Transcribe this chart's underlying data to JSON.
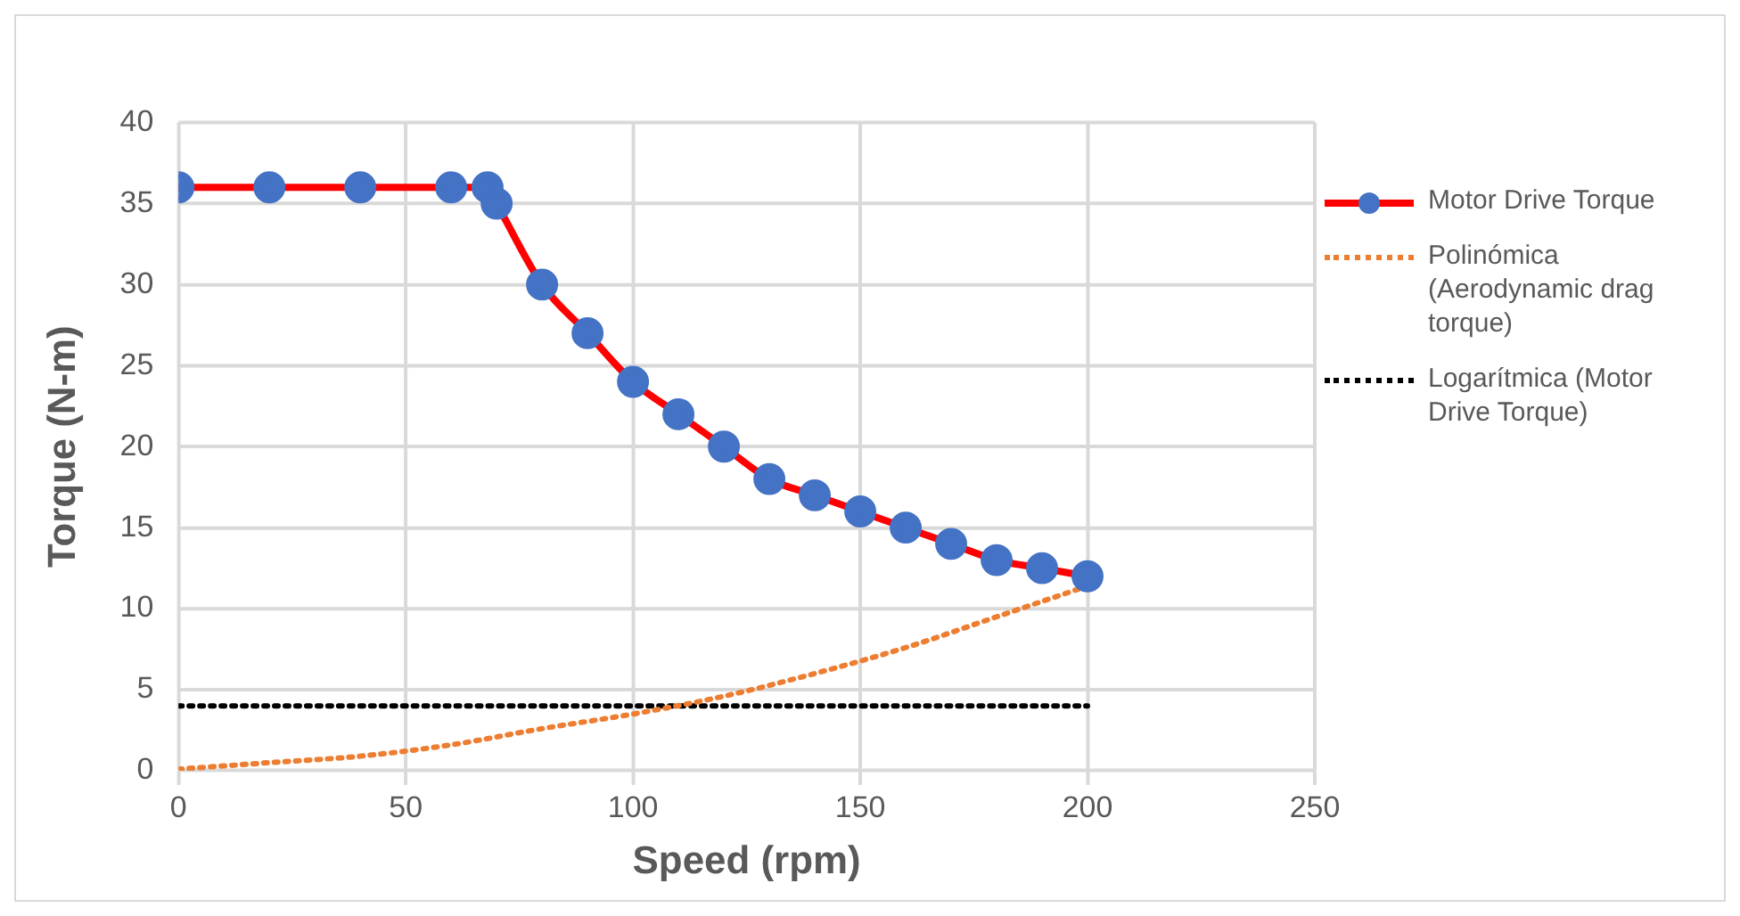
{
  "chart_data": {
    "type": "line",
    "xlabel": "Speed (rpm)",
    "ylabel": "Torque (N-m)",
    "xlim": [
      0,
      250
    ],
    "xticks": [
      0,
      50,
      100,
      150,
      200,
      250
    ],
    "ylim": [
      0,
      40
    ],
    "yticks": [
      0,
      5,
      10,
      15,
      20,
      25,
      30,
      35,
      40
    ],
    "grid": true,
    "legend": "right",
    "series": [
      {
        "name": "Motor Drive Torque",
        "color": "#ff0000",
        "marker": "circle",
        "line_style": "solid",
        "x": [
          0,
          20,
          40,
          60,
          68,
          70,
          80,
          90,
          100,
          110,
          120,
          130,
          140,
          150,
          160,
          170,
          180,
          190,
          200
        ],
        "values": [
          36,
          36,
          36,
          36,
          36,
          35,
          30,
          27,
          24,
          22,
          20,
          18,
          17,
          16,
          15,
          14,
          13,
          12.5,
          12
        ],
        "colors": [
          "#4472c4",
          "#4472c4",
          "#4472c4",
          "#4472c4",
          "#4472c4",
          "#4472c4",
          "#4472c4",
          "#4472c4",
          "#4472c4",
          "#4472c4",
          "#4472c4",
          "#4472c4",
          "#4472c4",
          "#4472c4",
          "#4472c4",
          "#4472c4",
          "#4472c4",
          "#4472c4",
          "#4472c4"
        ]
      },
      {
        "name": "Polinómica (Aerodynamic drag torque)",
        "color": "#ed7d31",
        "marker": "none",
        "line_style": "dotted",
        "x": [
          0,
          20,
          40,
          60,
          80,
          100,
          120,
          140,
          160,
          180,
          200
        ],
        "values": [
          0.1,
          0.5,
          0.9,
          1.6,
          2.6,
          3.5,
          4.6,
          6,
          7.6,
          9.5,
          11.4
        ]
      },
      {
        "name": "Logarítmica (Motor Drive Torque)",
        "color": "#000000",
        "marker": "none",
        "line_style": "dotted",
        "x": [
          0,
          200
        ],
        "values": [
          4,
          4
        ]
      }
    ]
  }
}
